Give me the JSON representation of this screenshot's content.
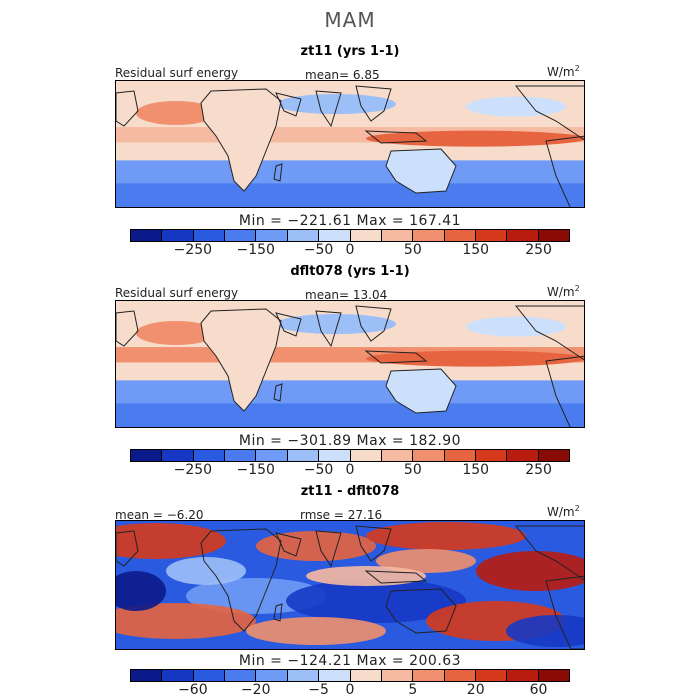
{
  "season": "MAM",
  "panels": [
    {
      "title": "zt11 (yrs 1-1)",
      "field_label": "Residual surf energy",
      "mean_text": "mean=   6.85",
      "units": "W/m",
      "units_exp": "2",
      "min_max": "Min = −221.61  Max = 167.41",
      "pattern": "model1"
    },
    {
      "title": "dflt078 (yrs 1-1)",
      "field_label": "Residual surf energy",
      "mean_text": "mean=  13.04",
      "units": "W/m",
      "units_exp": "2",
      "min_max": "Min = −301.89  Max = 182.90",
      "pattern": "model2"
    },
    {
      "title": "zt11 - dflt078",
      "mean_text": "mean =  −6.20",
      "rmse_text": "rmse =  27.16",
      "units": "W/m",
      "units_exp": "2",
      "min_max": "Min = −124.21  Max = 200.63",
      "pattern": "diff"
    }
  ],
  "colorbar_colors": [
    "#0b1a8a",
    "#1638c4",
    "#2a5ae0",
    "#4a7cf0",
    "#6f9af5",
    "#9dbff8",
    "#cde0fb",
    "#f7dccc",
    "#f6b9a1",
    "#f0906e",
    "#e6643f",
    "#d53a1c",
    "#b81c0f",
    "#8a0b06"
  ],
  "colorbars": [
    {
      "ticks": [
        "−250",
        "−150",
        "−50",
        "0",
        "50",
        "150",
        "250"
      ]
    },
    {
      "ticks": [
        "−250",
        "−150",
        "−50",
        "0",
        "50",
        "150",
        "250"
      ]
    },
    {
      "ticks": [
        "−60",
        "−20",
        "−5",
        "0",
        "5",
        "20",
        "60"
      ]
    }
  ]
}
